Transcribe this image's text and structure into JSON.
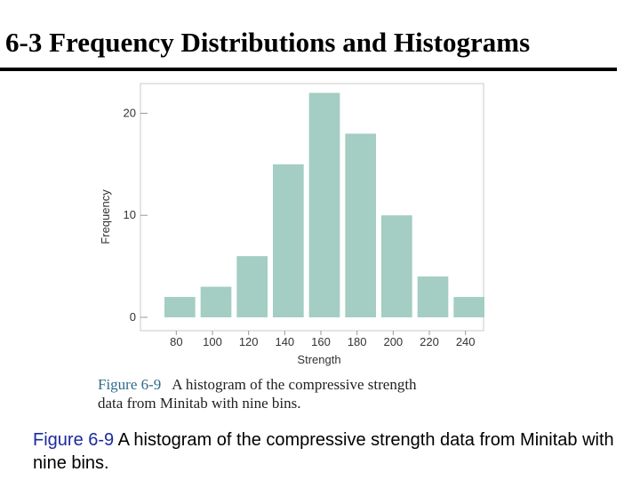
{
  "title": "6-3 Frequency Distributions and Histograms",
  "chart_data": {
    "type": "bar",
    "title": "",
    "xlabel": "Strength",
    "ylabel": "Frequency",
    "bin_edges": [
      70,
      90,
      110,
      130,
      150,
      170,
      190,
      210,
      230,
      250
    ],
    "values": [
      2,
      3,
      6,
      15,
      22,
      18,
      10,
      4,
      2
    ],
    "xticks": [
      80,
      100,
      120,
      140,
      160,
      180,
      200,
      220,
      240
    ],
    "yticks": [
      0,
      10,
      20
    ],
    "xlim": [
      70,
      250
    ],
    "ylim": [
      0,
      23
    ],
    "grid": false,
    "bar_color": "#a4cdc3"
  },
  "image_caption": {
    "label": "Figure 6-9",
    "line1": "A histogram of the compressive strength",
    "line2": "data from Minitab with nine bins."
  },
  "caption": {
    "label": "Figure 6-9",
    "text": " A histogram of the compressive strength data from Minitab with nine bins."
  }
}
